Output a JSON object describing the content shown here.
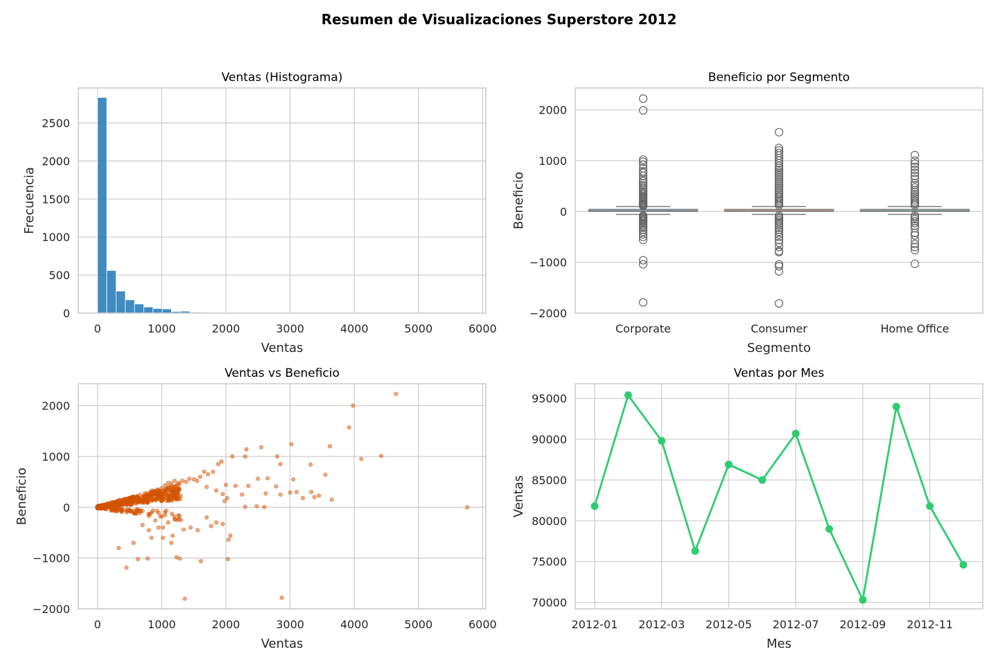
{
  "figure": {
    "title": "Resumen de Visualizaciones Superstore 2012"
  },
  "chart_data": [
    {
      "type": "bar",
      "subtype": "histogram",
      "title": "Ventas (Histograma)",
      "xlabel": "Ventas",
      "ylabel": "Frecuencia",
      "xlim": [
        -300,
        6050
      ],
      "ylim": [
        0,
        2960
      ],
      "xticks": [
        0,
        1000,
        2000,
        3000,
        4000,
        5000,
        6000
      ],
      "yticks": [
        0,
        500,
        1000,
        1500,
        2000,
        2500
      ],
      "bin_width": 144,
      "bins_start": 0,
      "values": [
        2835,
        560,
        290,
        175,
        120,
        80,
        60,
        55,
        20,
        25,
        12,
        10,
        8,
        6,
        4,
        3,
        3,
        2,
        2,
        2,
        1,
        1,
        1,
        1,
        1,
        0,
        1,
        0,
        1,
        0,
        0,
        1,
        0,
        0,
        0,
        0,
        0,
        0,
        0,
        1
      ],
      "color": "#1f77b4",
      "grid": true
    },
    {
      "type": "box",
      "title": "Beneficio por Segmento",
      "xlabel": "Segmento",
      "ylabel": "Beneficio",
      "ylim": [
        -2000,
        2430
      ],
      "yticks": [
        -2000,
        -1000,
        0,
        1000,
        2000
      ],
      "categories": [
        "Corporate",
        "Consumer",
        "Home Office"
      ],
      "box_colors": [
        "#8fa6c8",
        "#e8a08a",
        "#80c8a8"
      ],
      "boxes": [
        {
          "q1": 2,
          "median": 10,
          "q3": 40,
          "whisker_low": -57,
          "whisker_high": 95,
          "fliers": [
            2220,
            1990,
            1020,
            980,
            920,
            850,
            790,
            760,
            700,
            640,
            600,
            560,
            520,
            480,
            450,
            420,
            390,
            360,
            330,
            300,
            280,
            260,
            240,
            220,
            200,
            180,
            160,
            140,
            125,
            110,
            -80,
            -100,
            -120,
            -140,
            -160,
            -180,
            -200,
            -230,
            -260,
            -290,
            -320,
            -360,
            -400,
            -450,
            -500,
            -560,
            -960,
            -1040,
            -1790
          ]
        },
        {
          "q1": 2,
          "median": 10,
          "q3": 40,
          "whisker_low": -57,
          "whisker_high": 95,
          "fliers": [
            1560,
            1250,
            1200,
            1150,
            1100,
            1050,
            1000,
            950,
            900,
            860,
            820,
            780,
            740,
            700,
            660,
            620,
            580,
            540,
            500,
            460,
            420,
            380,
            340,
            300,
            270,
            240,
            210,
            180,
            150,
            120,
            -80,
            -110,
            -140,
            -170,
            -200,
            -240,
            -280,
            -320,
            -360,
            -400,
            -450,
            -500,
            -560,
            -620,
            -700,
            -780,
            -800,
            -1040,
            -1080,
            -1180,
            -1810
          ]
        },
        {
          "q1": 2,
          "median": 10,
          "q3": 40,
          "whisker_low": -57,
          "whisker_high": 95,
          "fliers": [
            1110,
            1000,
            940,
            880,
            820,
            760,
            700,
            640,
            560,
            520,
            470,
            420,
            380,
            340,
            300,
            260,
            220,
            180,
            150,
            120,
            -80,
            -110,
            -150,
            -190,
            -230,
            -280,
            -330,
            -420,
            -470,
            -560,
            -640,
            -700,
            -760,
            -1030
          ]
        }
      ],
      "grid": true
    },
    {
      "type": "scatter",
      "title": "Ventas vs Beneficio",
      "xlabel": "Ventas",
      "ylabel": "Beneficio",
      "xlim": [
        -300,
        6050
      ],
      "ylim": [
        -2000,
        2430
      ],
      "xticks": [
        0,
        1000,
        2000,
        3000,
        4000,
        5000,
        6000
      ],
      "yticks": [
        -2000,
        -1000,
        0,
        1000,
        2000
      ],
      "color": "#d35400",
      "points": [
        [
          4650,
          2230
        ],
        [
          3980,
          2000
        ],
        [
          3920,
          1570
        ],
        [
          3020,
          1240
        ],
        [
          2550,
          1180
        ],
        [
          2320,
          1140
        ],
        [
          3620,
          1200
        ],
        [
          2100,
          1000
        ],
        [
          2300,
          1000
        ],
        [
          2800,
          1000
        ],
        [
          4110,
          950
        ],
        [
          4420,
          1010
        ],
        [
          3320,
          840
        ],
        [
          2850,
          850
        ],
        [
          2500,
          560
        ],
        [
          2650,
          570
        ],
        [
          3050,
          550
        ],
        [
          3550,
          640
        ],
        [
          2780,
          410
        ],
        [
          2350,
          420
        ],
        [
          2150,
          420
        ],
        [
          2000,
          440
        ],
        [
          2620,
          270
        ],
        [
          2250,
          250
        ],
        [
          3000,
          290
        ],
        [
          2850,
          250
        ],
        [
          3330,
          300
        ],
        [
          3450,
          230
        ],
        [
          3650,
          150
        ],
        [
          3380,
          200
        ],
        [
          3100,
          300
        ],
        [
          2480,
          20
        ],
        [
          2300,
          10
        ],
        [
          2600,
          5
        ],
        [
          3200,
          180
        ],
        [
          1930,
          900
        ],
        [
          1880,
          850
        ],
        [
          1800,
          700
        ],
        [
          1720,
          650
        ],
        [
          1660,
          700
        ],
        [
          1600,
          600
        ],
        [
          1550,
          520
        ],
        [
          1500,
          550
        ],
        [
          1430,
          560
        ],
        [
          1380,
          500
        ],
        [
          1320,
          520
        ],
        [
          1260,
          480
        ],
        [
          1200,
          520
        ],
        [
          1150,
          470
        ],
        [
          1100,
          480
        ],
        [
          1050,
          430
        ],
        [
          1700,
          400
        ],
        [
          1850,
          330
        ],
        [
          1950,
          260
        ],
        [
          2020,
          180
        ],
        [
          1980,
          120
        ],
        [
          5760,
          0
        ],
        [
          2870,
          -1780
        ],
        [
          1360,
          -1800
        ],
        [
          2030,
          -1020
        ],
        [
          1610,
          -1060
        ],
        [
          1230,
          -980
        ],
        [
          1280,
          -1010
        ],
        [
          780,
          -1010
        ],
        [
          630,
          -1020
        ],
        [
          450,
          -1190
        ],
        [
          1340,
          -440
        ],
        [
          1170,
          -560
        ],
        [
          1020,
          -600
        ],
        [
          840,
          -600
        ],
        [
          950,
          -400
        ],
        [
          1150,
          -700
        ],
        [
          1020,
          -400
        ],
        [
          330,
          -800
        ],
        [
          560,
          -700
        ],
        [
          2040,
          -640
        ],
        [
          2070,
          -560
        ],
        [
          1950,
          -330
        ],
        [
          1770,
          -370
        ],
        [
          1560,
          -450
        ],
        [
          1450,
          -400
        ],
        [
          1850,
          -300
        ],
        [
          1700,
          -200
        ],
        [
          1300,
          -250
        ],
        [
          1100,
          -300
        ],
        [
          900,
          -260
        ],
        [
          700,
          -350
        ],
        [
          800,
          -450
        ]
      ],
      "grid": true
    },
    {
      "type": "line",
      "title": "Ventas por Mes",
      "xlabel": "Mes",
      "ylabel": "Ventas",
      "x": [
        "2012-01",
        "2012-02",
        "2012-03",
        "2012-04",
        "2012-05",
        "2012-06",
        "2012-07",
        "2012-08",
        "2012-09",
        "2012-10",
        "2012-11",
        "2012-12"
      ],
      "xticks": [
        "2012-01",
        "2012-03",
        "2012-05",
        "2012-07",
        "2012-09",
        "2012-11"
      ],
      "values": [
        81800,
        95400,
        89800,
        76300,
        86900,
        85000,
        90700,
        79000,
        70300,
        94000,
        81800,
        74600
      ],
      "ylim": [
        69200,
        96800
      ],
      "yticks": [
        70000,
        75000,
        80000,
        85000,
        90000,
        95000
      ],
      "color": "#2ecc71",
      "grid": true
    }
  ]
}
